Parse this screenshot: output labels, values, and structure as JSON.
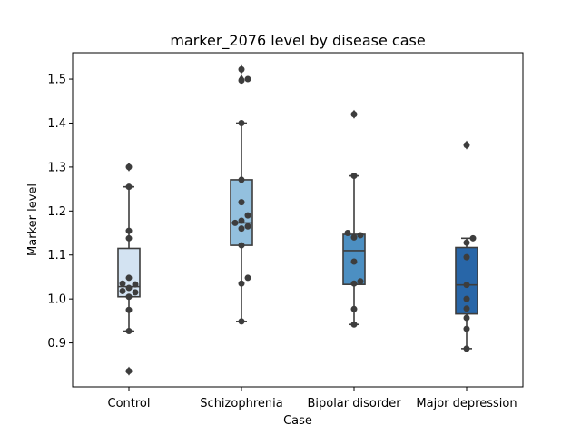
{
  "chart_data": {
    "type": "box",
    "title": "marker_2076 level by disease case",
    "xlabel": "Case",
    "ylabel": "Marker level",
    "ylim": [
      0.8,
      1.56
    ],
    "yticks": [
      "0.9",
      "1.0",
      "1.1",
      "1.2",
      "1.3",
      "1.4",
      "1.5"
    ],
    "grid": false,
    "categories": [
      "Control",
      "Schizophrenia",
      "Bipolar disorder",
      "Major depression"
    ],
    "colors": [
      "#d3e3f2",
      "#93c0de",
      "#4c8fc2",
      "#2866a8"
    ],
    "boxes": [
      {
        "q1": 1.005,
        "median": 1.028,
        "q3": 1.115,
        "whisker_low": 0.927,
        "whisker_high": 1.255,
        "outliers": [
          1.3,
          0.836
        ]
      },
      {
        "q1": 1.122,
        "median": 1.173,
        "q3": 1.271,
        "whisker_low": 0.949,
        "whisker_high": 1.4,
        "outliers": [
          1.522,
          1.5,
          1.497
        ]
      },
      {
        "q1": 1.033,
        "median": 1.11,
        "q3": 1.147,
        "whisker_low": 0.942,
        "whisker_high": 1.28,
        "outliers": [
          1.42
        ]
      },
      {
        "q1": 0.966,
        "median": 1.032,
        "q3": 1.117,
        "whisker_low": 0.887,
        "whisker_high": 1.138,
        "outliers": [
          1.35
        ]
      }
    ],
    "points": [
      [
        1.3,
        1.255,
        1.155,
        1.138,
        1.048,
        1.035,
        1.033,
        1.025,
        1.018,
        1.015,
        1.005,
        0.975,
        0.927,
        0.836
      ],
      [
        1.522,
        1.5,
        1.497,
        1.4,
        1.271,
        1.22,
        1.19,
        1.178,
        1.173,
        1.165,
        1.16,
        1.122,
        1.048,
        1.035,
        0.949
      ],
      [
        1.42,
        1.28,
        1.15,
        1.145,
        1.14,
        1.085,
        1.04,
        1.035,
        0.977,
        0.942
      ],
      [
        1.35,
        1.138,
        1.128,
        1.095,
        1.032,
        1.0,
        0.978,
        0.957,
        0.932,
        0.887
      ]
    ]
  }
}
